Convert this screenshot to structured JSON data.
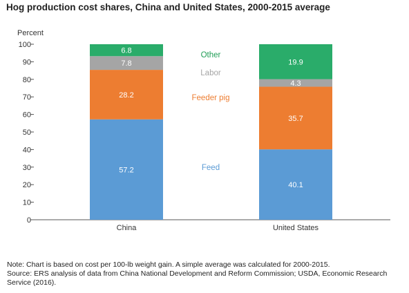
{
  "title": "Hog production cost shares, China and United States, 2000-2015 average",
  "notes": [
    "Note: Chart is based on cost per 100-lb weight gain. A simple average was calculated for 2000-2015.",
    "Source: ERS analysis of data from China National Development and Reform Commission; USDA, Economic Research",
    "Service (2016)."
  ],
  "chart_data": {
    "type": "bar",
    "stacked": true,
    "ylabel": "Percent",
    "ylim": [
      0,
      100
    ],
    "yticks": [
      0,
      10,
      20,
      30,
      40,
      50,
      60,
      70,
      80,
      90,
      100
    ],
    "grid": false,
    "categories": [
      "China",
      "United States"
    ],
    "series": [
      {
        "name": "Feed",
        "color": "#5b9bd5",
        "label_color": "#ffffff",
        "legend_color": "#5b9bd5",
        "values": [
          57.2,
          40.1
        ]
      },
      {
        "name": "Feeder pig",
        "color": "#ed7d31",
        "label_color": "#ffffff",
        "legend_color": "#ed7d31",
        "values": [
          28.2,
          35.7
        ]
      },
      {
        "name": "Labor",
        "color": "#a5a5a5",
        "label_color": "#ffffff",
        "legend_color": "#a5a5a5",
        "values": [
          7.8,
          4.3
        ]
      },
      {
        "name": "Other",
        "color": "#2aac6a",
        "label_color": "#ffffff",
        "legend_color": "#1f9d55",
        "values": [
          6.8,
          19.9
        ]
      }
    ],
    "legend_placement": "between bars"
  }
}
